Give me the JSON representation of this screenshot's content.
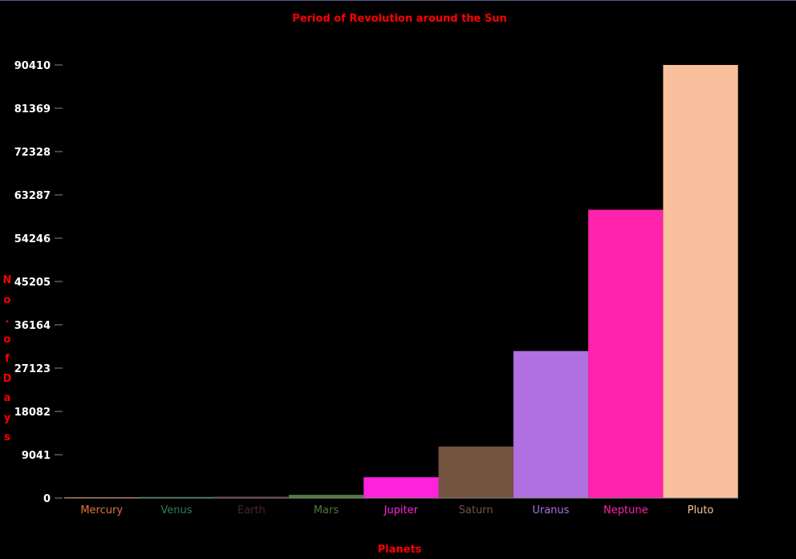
{
  "chart_data": {
    "type": "bar",
    "title": "Period of Revolution around the Sun",
    "xlabel": "Planets",
    "ylabel": "No. of Days",
    "categories": [
      "Mercury",
      "Venus",
      "Earth",
      "Mars",
      "Jupiter",
      "Saturn",
      "Uranus",
      "Neptune",
      "Pluto"
    ],
    "values": [
      88,
      225,
      365,
      687,
      4333,
      10759,
      30687,
      60190,
      90410
    ],
    "colors": [
      "#e8703a",
      "#2e7d55",
      "#4a2435",
      "#4f7a3a",
      "#ff22dd",
      "#74533f",
      "#b070e0",
      "#ff22aa",
      "#f8c09c"
    ],
    "yticks": [
      "0",
      "9041",
      "18082",
      "27123",
      "36164",
      "45205",
      "54246",
      "63287",
      "72328",
      "81369",
      "90410"
    ],
    "ylim": [
      0,
      90410
    ],
    "grid": false,
    "legend": "none"
  }
}
